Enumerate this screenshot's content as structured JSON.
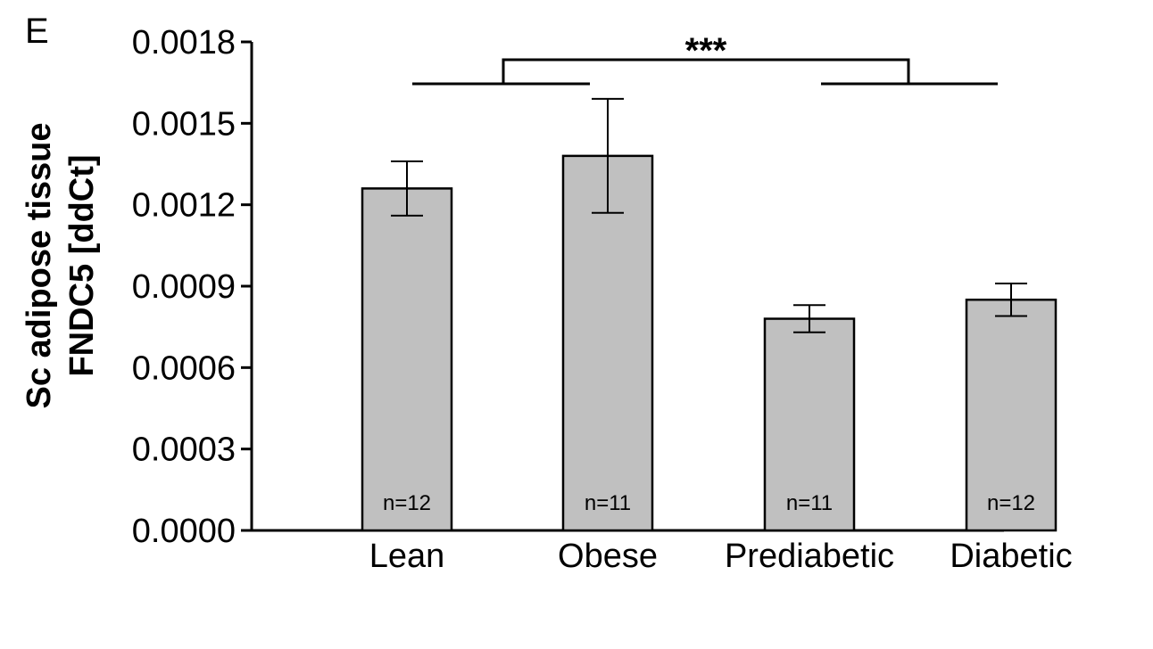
{
  "panel_label": "E",
  "chart_data": {
    "type": "bar",
    "categories": [
      "Lean",
      "Obese",
      "Prediabetic",
      "Diabetic"
    ],
    "values": [
      0.00126,
      0.00138,
      0.00078,
      0.00085
    ],
    "error_upper": [
      0.00136,
      0.00159,
      0.00083,
      0.00091
    ],
    "error_lower": [
      0.00116,
      0.00117,
      0.00073,
      0.00079
    ],
    "n_labels": [
      "n=12",
      "n=11",
      "n=11",
      "n=12"
    ],
    "ylabel_lines": [
      "Sc adipose tissue",
      "FNDC5 [ddCt]"
    ],
    "ylim": [
      0,
      0.0018
    ],
    "yticks": [
      "0.0000",
      "0.0003",
      "0.0006",
      "0.0009",
      "0.0012",
      "0.0015",
      "0.0018"
    ],
    "ytick_values": [
      0,
      0.0003,
      0.0006,
      0.0009,
      0.0012,
      0.0015,
      0.0018
    ],
    "bar_color": "#c0c0c0",
    "grid": false,
    "significance": {
      "label": "***",
      "left_group": [
        "Lean",
        "Obese"
      ],
      "right_group": [
        "Prediabetic",
        "Diabetic"
      ]
    }
  }
}
